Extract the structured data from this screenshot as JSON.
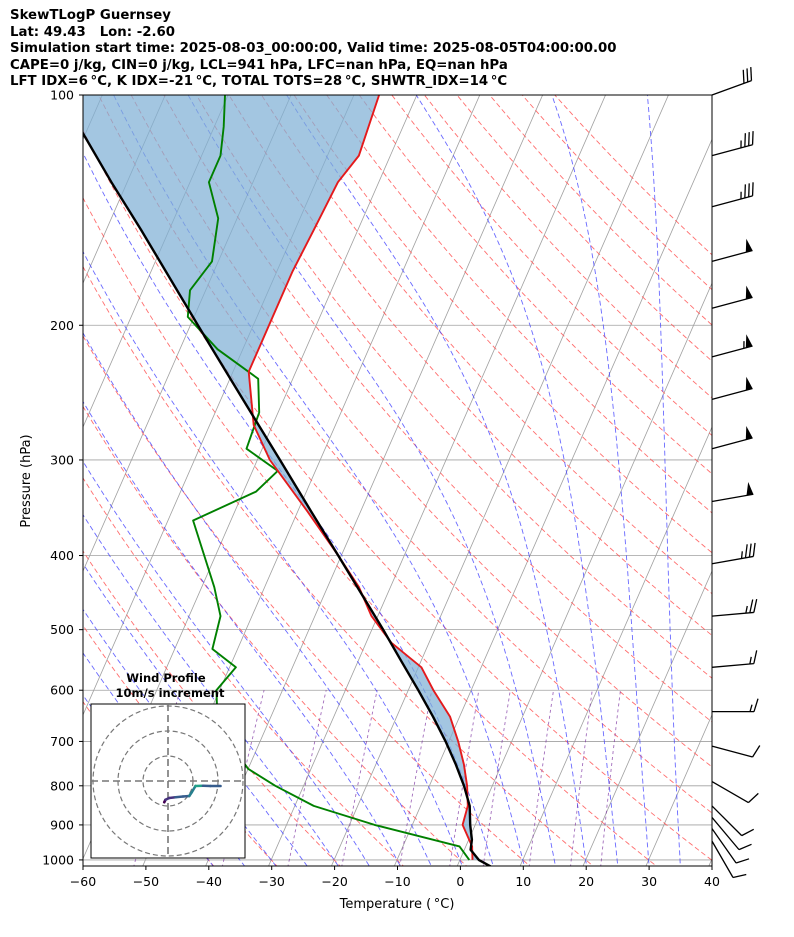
{
  "header": {
    "line1": "SkewTLogP Guernsey",
    "line2": "Lat: 49.43   Lon: -2.60",
    "line3": "Simulation start time: 2025-08-03_00:00:00, Valid time: 2025-08-05T04:00:00.00",
    "line4": "CAPE=0 j/kg, CIN=0 j/kg, LCL=941 hPa, LFC=nan hPa, EQ=nan hPa",
    "line5": "LFT IDX=6 °C, K IDX=-21 °C, TOTAL TOTS=28 °C, SHWTR_IDX=14 °C"
  },
  "inset": {
    "title_line1": "Wind Profile",
    "title_line2": "10m/s increment"
  },
  "colors": {
    "temperature": "#e41a1c",
    "dewpoint": "#008000",
    "parcel": "#000000",
    "shade": "#7fb0d5",
    "dry_adiabat": "#ff5555",
    "moist_adiabat": "#4444ff",
    "mixing_ratio": "#7a2fa0",
    "isotherm": "#a0a0a0"
  },
  "chart_data": {
    "type": "skew-t",
    "xlabel": "Temperature ( °C)",
    "ylabel": "Pressure (hPa)",
    "xlim": [
      -60,
      40
    ],
    "ylim": [
      1050,
      100
    ],
    "x_ticks": [
      "−60",
      "−50",
      "−40",
      "−30",
      "−20",
      "−10",
      "0",
      "10",
      "20",
      "30",
      "40"
    ],
    "x_tick_values": [
      -60,
      -50,
      -40,
      -30,
      -20,
      -10,
      0,
      10,
      20,
      30,
      40
    ],
    "y_ticks": [
      "100",
      "200",
      "300",
      "400",
      "500",
      "600",
      "700",
      "800",
      "900",
      "1000"
    ],
    "y_tick_values": [
      100,
      200,
      300,
      400,
      500,
      600,
      700,
      800,
      900,
      1000
    ],
    "temperature_profile": [
      {
        "p": 1000,
        "t": 12.0
      },
      {
        "p": 960,
        "t": 11.0
      },
      {
        "p": 900,
        "t": 8.0
      },
      {
        "p": 850,
        "t": 7.5
      },
      {
        "p": 800,
        "t": 6.0
      },
      {
        "p": 750,
        "t": 4.0
      },
      {
        "p": 700,
        "t": 1.5
      },
      {
        "p": 650,
        "t": -1.5
      },
      {
        "p": 600,
        "t": -6.0
      },
      {
        "p": 560,
        "t": -9.5
      },
      {
        "p": 520,
        "t": -16.0
      },
      {
        "p": 480,
        "t": -21.0
      },
      {
        "p": 440,
        "t": -25.0
      },
      {
        "p": 400,
        "t": -30.5
      },
      {
        "p": 350,
        "t": -38.5
      },
      {
        "p": 300,
        "t": -48.0
      },
      {
        "p": 270,
        "t": -53.0
      },
      {
        "p": 230,
        "t": -57.5
      },
      {
        "p": 200,
        "t": -57.5
      },
      {
        "p": 170,
        "t": -57.5
      },
      {
        "p": 150,
        "t": -57.0
      },
      {
        "p": 130,
        "t": -56.5
      },
      {
        "p": 120,
        "t": -55.0
      },
      {
        "p": 100,
        "t": -56.0
      }
    ],
    "dewpoint_profile": [
      {
        "p": 1000,
        "t": 11.5
      },
      {
        "p": 960,
        "t": 9.0
      },
      {
        "p": 900,
        "t": -6.0
      },
      {
        "p": 850,
        "t": -17.0
      },
      {
        "p": 800,
        "t": -24.5
      },
      {
        "p": 760,
        "t": -30.0
      },
      {
        "p": 700,
        "t": -35.0
      },
      {
        "p": 650,
        "t": -38.5
      },
      {
        "p": 600,
        "t": -40.5
      },
      {
        "p": 560,
        "t": -39.0
      },
      {
        "p": 530,
        "t": -44.0
      },
      {
        "p": 480,
        "t": -45.0
      },
      {
        "p": 440,
        "t": -48.0
      },
      {
        "p": 360,
        "t": -56.0
      },
      {
        "p": 330,
        "t": -48.0
      },
      {
        "p": 310,
        "t": -46.0
      },
      {
        "p": 290,
        "t": -52.5
      },
      {
        "p": 260,
        "t": -53.0
      },
      {
        "p": 235,
        "t": -55.5
      },
      {
        "p": 215,
        "t": -64.0
      },
      {
        "p": 195,
        "t": -71.0
      },
      {
        "p": 180,
        "t": -72.5
      },
      {
        "p": 165,
        "t": -71.0
      },
      {
        "p": 145,
        "t": -73.0
      },
      {
        "p": 130,
        "t": -77.0
      },
      {
        "p": 120,
        "t": -77.0
      },
      {
        "p": 110,
        "t": -78.5
      },
      {
        "p": 100,
        "t": -80.5
      }
    ],
    "parcel_profile": [
      {
        "p": 1030,
        "t": 16.5
      },
      {
        "p": 1000,
        "t": 13.0
      },
      {
        "p": 970,
        "t": 11.0
      },
      {
        "p": 941,
        "t": 10.5
      },
      {
        "p": 900,
        "t": 9.2
      },
      {
        "p": 850,
        "t": 7.8
      },
      {
        "p": 800,
        "t": 5.5
      },
      {
        "p": 750,
        "t": 2.7
      },
      {
        "p": 700,
        "t": -0.5
      },
      {
        "p": 650,
        "t": -4.2
      },
      {
        "p": 600,
        "t": -8.4
      },
      {
        "p": 550,
        "t": -13.1
      },
      {
        "p": 500,
        "t": -18.2
      },
      {
        "p": 450,
        "t": -24.0
      },
      {
        "p": 400,
        "t": -30.5
      },
      {
        "p": 350,
        "t": -37.9
      },
      {
        "p": 300,
        "t": -46.4
      },
      {
        "p": 250,
        "t": -56.5
      },
      {
        "p": 200,
        "t": -68.8
      },
      {
        "p": 150,
        "t": -84.5
      },
      {
        "p": 130,
        "t": -92.5
      },
      {
        "p": 110,
        "t": -101.5
      },
      {
        "p": 100,
        "t": -107.0
      }
    ],
    "wind_barbs": [
      {
        "p": 100,
        "speed_kt": 30,
        "dir_deg": 250
      },
      {
        "p": 120,
        "speed_kt": 35,
        "dir_deg": 255
      },
      {
        "p": 140,
        "speed_kt": 35,
        "dir_deg": 255
      },
      {
        "p": 165,
        "speed_kt": 50,
        "dir_deg": 255
      },
      {
        "p": 190,
        "speed_kt": 50,
        "dir_deg": 255
      },
      {
        "p": 220,
        "speed_kt": 55,
        "dir_deg": 255
      },
      {
        "p": 250,
        "speed_kt": 50,
        "dir_deg": 255
      },
      {
        "p": 290,
        "speed_kt": 50,
        "dir_deg": 255
      },
      {
        "p": 340,
        "speed_kt": 50,
        "dir_deg": 260
      },
      {
        "p": 410,
        "speed_kt": 35,
        "dir_deg": 260
      },
      {
        "p": 480,
        "speed_kt": 25,
        "dir_deg": 265
      },
      {
        "p": 560,
        "speed_kt": 15,
        "dir_deg": 265
      },
      {
        "p": 640,
        "speed_kt": 15,
        "dir_deg": 270
      },
      {
        "p": 710,
        "speed_kt": 10,
        "dir_deg": 285
      },
      {
        "p": 790,
        "speed_kt": 10,
        "dir_deg": 300
      },
      {
        "p": 850,
        "speed_kt": 10,
        "dir_deg": 315
      },
      {
        "p": 880,
        "speed_kt": 10,
        "dir_deg": 320
      },
      {
        "p": 910,
        "speed_kt": 10,
        "dir_deg": 325
      },
      {
        "p": 945,
        "speed_kt": 10,
        "dir_deg": 330
      }
    ],
    "hodograph": {
      "ring_values_ms": [
        10,
        20,
        30
      ],
      "path": [
        {
          "u": -1.5,
          "v": -8.5
        },
        {
          "u": -1.0,
          "v": -7.5
        },
        {
          "u": 0.5,
          "v": -6.8
        },
        {
          "u": 3.0,
          "v": -6.5
        },
        {
          "u": 6.0,
          "v": -6.2
        },
        {
          "u": 8.5,
          "v": -6.0
        },
        {
          "u": 9.5,
          "v": -4.5
        },
        {
          "u": 11.0,
          "v": -2.0
        },
        {
          "u": 14.0,
          "v": -1.9
        },
        {
          "u": 17.0,
          "v": -2.0
        },
        {
          "u": 21.0,
          "v": -2.0
        }
      ]
    }
  }
}
